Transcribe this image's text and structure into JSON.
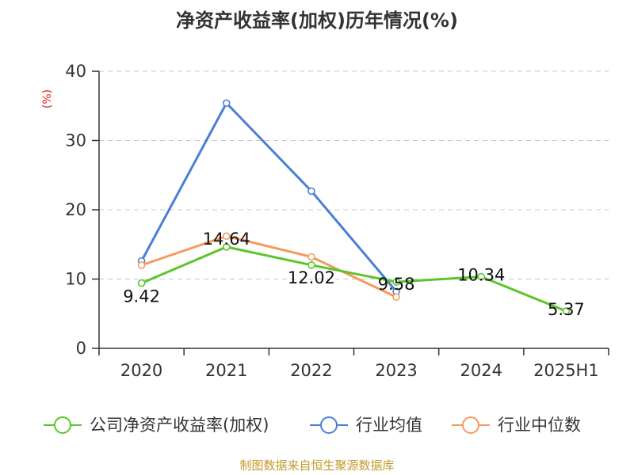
{
  "chart_data": {
    "type": "line",
    "title": "净资产收益率(加权)历年情况(%)",
    "ylabel": "(%)",
    "categories": [
      "2020",
      "2021",
      "2022",
      "2023",
      "2024",
      "2025H1"
    ],
    "yticks": [
      "0",
      "10",
      "20",
      "30",
      "40"
    ],
    "ylim": [
      0,
      40
    ],
    "grid": "horizontal-dashed",
    "legend_position": "bottom",
    "series": [
      {
        "name": "公司净资产收益率(加权)",
        "color": "#5cc52a",
        "values": [
          9.42,
          14.64,
          12.02,
          9.58,
          10.34,
          5.37
        ],
        "labels": [
          "9.42",
          "14.64",
          "12.02",
          "9.58",
          "10.34",
          "5.37"
        ]
      },
      {
        "name": "行业均值",
        "color": "#4a7fd6",
        "values": [
          12.6,
          35.4,
          22.7,
          8.2,
          null,
          null
        ]
      },
      {
        "name": "行业中位数",
        "color": "#f59a5f",
        "values": [
          12.0,
          16.2,
          13.2,
          7.4,
          null,
          null
        ]
      }
    ]
  },
  "footer": {
    "source": "制图数据来自恒生聚源数据库"
  }
}
